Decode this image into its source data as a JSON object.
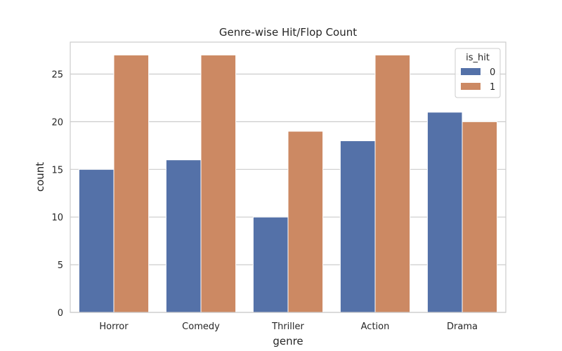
{
  "chart_data": {
    "type": "bar",
    "title": "Genre-wise Hit/Flop Count",
    "xlabel": "genre",
    "ylabel": "count",
    "categories": [
      "Horror",
      "Comedy",
      "Thriller",
      "Action",
      "Drama"
    ],
    "ylim": [
      0,
      28.35
    ],
    "yticks": [
      "0",
      "5",
      "10",
      "15",
      "20",
      "25"
    ],
    "grid": "horizontal",
    "legend": {
      "title": "is_hit",
      "placement": "top-right",
      "entries": [
        "0",
        "1"
      ]
    },
    "series": [
      {
        "name": "0",
        "color": "#5471a8",
        "values": [
          15,
          16,
          10,
          18,
          21
        ]
      },
      {
        "name": "1",
        "color": "#cc8963",
        "values": [
          27,
          27,
          19,
          27,
          20
        ]
      }
    ]
  }
}
